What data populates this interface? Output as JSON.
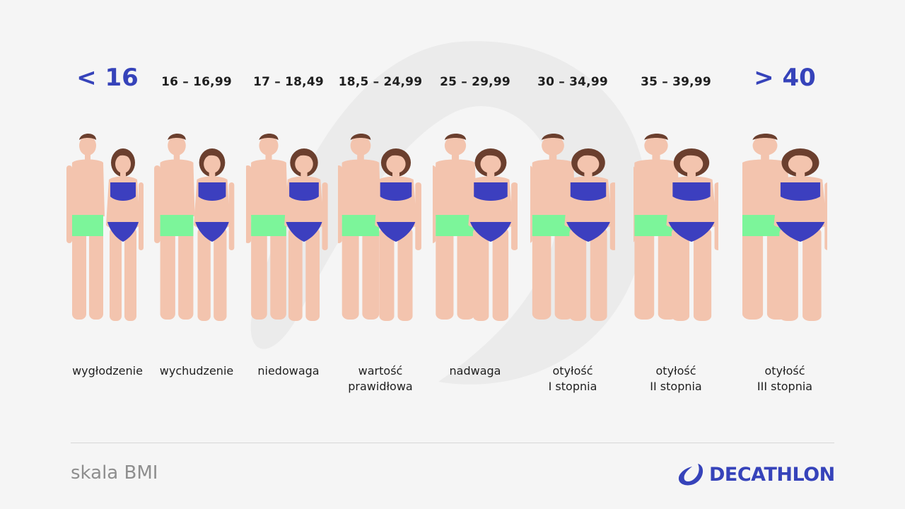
{
  "bmi_scale": [
    {
      "range": "< 16",
      "category": [
        "wygłodzenie"
      ],
      "emphasis": true
    },
    {
      "range": "16 – 16,99",
      "category": [
        "wychudzenie"
      ],
      "emphasis": false
    },
    {
      "range": "17 – 18,49",
      "category": [
        "niedowaga"
      ],
      "emphasis": false
    },
    {
      "range": "18,5 – 24,99",
      "category": [
        "wartość",
        "prawidłowa"
      ],
      "emphasis": false
    },
    {
      "range": "25 – 29,99",
      "category": [
        "nadwaga"
      ],
      "emphasis": false
    },
    {
      "range": "30 – 34,99",
      "category": [
        "otyłość",
        "I stopnia"
      ],
      "emphasis": false
    },
    {
      "range": "35 – 39,99",
      "category": [
        "otyłość",
        "II stopnia"
      ],
      "emphasis": false
    },
    {
      "range": "> 40",
      "category": [
        "otyłość",
        "III stopnia"
      ],
      "emphasis": true
    }
  ],
  "footer": {
    "title": "skala BMI",
    "brand": "DECATHLON"
  },
  "colors": {
    "accent": "#3643ba",
    "skin": "#f3c4ae",
    "male_trunks": "#7cf59a",
    "female_bikini": "#3c3fbf",
    "hair": "#6b3f2e",
    "background": "#f5f5f5"
  }
}
